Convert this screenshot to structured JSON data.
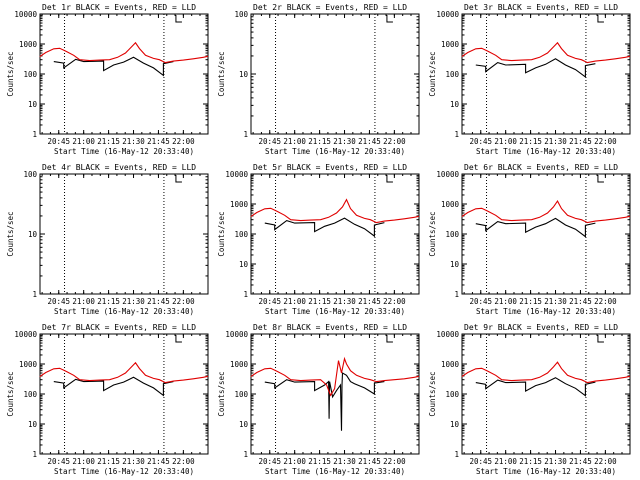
{
  "chart_data": [
    {
      "type": "line",
      "title": "Det 1r BLACK = Events, RED = LLD",
      "xlabel": "Start Time (16-May-12 20:33:40)",
      "ylabel": "Counts/sec",
      "yscale": "log",
      "ylim": [
        1,
        10000
      ],
      "xlim": [
        20.562,
        22.247
      ],
      "xticks": [
        "20:45",
        "21:00",
        "21:15",
        "21:30",
        "21:45",
        "22:00"
      ],
      "xtick_values": [
        20.75,
        21.0,
        21.25,
        21.5,
        21.75,
        22.0
      ],
      "yticks": [
        "1",
        "10",
        "100",
        "1000",
        "10000"
      ],
      "ytick_values": [
        1,
        10,
        100,
        1000,
        10000
      ],
      "vlines": [
        20.808,
        21.805
      ],
      "legend": "none",
      "series": [
        {
          "color": "#000000",
          "x": [
            20.7,
            20.8,
            20.8,
            20.92,
            21.0,
            21.2,
            21.2,
            21.3,
            21.4,
            21.5,
            21.6,
            21.7,
            21.8,
            21.8,
            21.9
          ],
          "y": [
            260,
            230,
            160,
            310,
            260,
            270,
            130,
            200,
            250,
            360,
            230,
            160,
            90,
            220,
            260
          ]
        },
        {
          "color": "#e00000",
          "x": [
            20.56,
            20.62,
            20.7,
            20.76,
            20.82,
            20.9,
            20.96,
            21.06,
            21.16,
            21.26,
            21.34,
            21.42,
            21.48,
            21.52,
            21.56,
            21.62,
            21.7,
            21.76,
            21.82,
            21.9,
            22.0,
            22.1,
            22.2,
            22.247
          ],
          "y": [
            380,
            520,
            690,
            720,
            580,
            420,
            300,
            280,
            290,
            300,
            360,
            500,
            800,
            1100,
            700,
            420,
            330,
            300,
            240,
            270,
            290,
            320,
            360,
            390
          ]
        }
      ]
    },
    {
      "type": "line",
      "title": "Det 2r BLACK = Events, RED = LLD",
      "xlabel": "Start Time (16-May-12 20:33:40)",
      "ylabel": "Counts/sec",
      "yscale": "log",
      "ylim": [
        1,
        100
      ],
      "xlim": [
        20.562,
        22.247
      ],
      "xticks": [
        "20:45",
        "21:00",
        "21:15",
        "21:30",
        "21:45",
        "22:00"
      ],
      "xtick_values": [
        20.75,
        21.0,
        21.25,
        21.5,
        21.75,
        22.0
      ],
      "yticks": [
        "1",
        "10",
        "100"
      ],
      "ytick_values": [
        1,
        10,
        100
      ],
      "vlines": [
        20.808,
        21.805
      ],
      "legend": "none",
      "series": []
    },
    {
      "type": "line",
      "title": "Det 3r BLACK = Events, RED = LLD",
      "xlabel": "Start Time (16-May-12 20:33:40)",
      "ylabel": "Counts/sec",
      "yscale": "log",
      "ylim": [
        1,
        10000
      ],
      "xlim": [
        20.562,
        22.247
      ],
      "xticks": [
        "20:45",
        "21:00",
        "21:15",
        "21:30",
        "21:45",
        "22:00"
      ],
      "xtick_values": [
        20.75,
        21.0,
        21.25,
        21.5,
        21.75,
        22.0
      ],
      "yticks": [
        "1",
        "10",
        "100",
        "1000",
        "10000"
      ],
      "ytick_values": [
        1,
        10,
        100,
        1000,
        10000
      ],
      "vlines": [
        20.808,
        21.805
      ],
      "legend": "none",
      "series": [
        {
          "color": "#000000",
          "x": [
            20.7,
            20.8,
            20.8,
            20.92,
            21.0,
            21.2,
            21.2,
            21.3,
            21.4,
            21.5,
            21.6,
            21.7,
            21.8,
            21.8,
            21.9
          ],
          "y": [
            200,
            180,
            120,
            240,
            200,
            210,
            110,
            160,
            210,
            320,
            200,
            140,
            80,
            190,
            220
          ]
        },
        {
          "color": "#e00000",
          "x": [
            20.56,
            20.62,
            20.7,
            20.76,
            20.82,
            20.9,
            20.96,
            21.06,
            21.16,
            21.26,
            21.34,
            21.42,
            21.48,
            21.52,
            21.56,
            21.62,
            21.7,
            21.76,
            21.82,
            21.9,
            22.0,
            22.1,
            22.2,
            22.247
          ],
          "y": [
            380,
            520,
            690,
            720,
            580,
            420,
            300,
            280,
            290,
            300,
            360,
            500,
            800,
            1100,
            700,
            420,
            330,
            300,
            240,
            270,
            290,
            320,
            360,
            390
          ]
        }
      ]
    },
    {
      "type": "line",
      "title": "Det 4r BLACK = Events, RED = LLD",
      "xlabel": "Start Time (16-May-12 20:33:40)",
      "ylabel": "Counts/sec",
      "yscale": "log",
      "ylim": [
        1,
        100
      ],
      "xlim": [
        20.562,
        22.247
      ],
      "xticks": [
        "20:45",
        "21:00",
        "21:15",
        "21:30",
        "21:45",
        "22:00"
      ],
      "xtick_values": [
        20.75,
        21.0,
        21.25,
        21.5,
        21.75,
        22.0
      ],
      "yticks": [
        "1",
        "10",
        "100"
      ],
      "ytick_values": [
        1,
        10,
        100
      ],
      "vlines": [
        20.808,
        21.805
      ],
      "legend": "none",
      "series": []
    },
    {
      "type": "line",
      "title": "Det 5r BLACK = Events, RED = LLD",
      "xlabel": "Start Time (16-May-12 20:33:40)",
      "ylabel": "Counts/sec",
      "yscale": "log",
      "ylim": [
        1,
        10000
      ],
      "xlim": [
        20.562,
        22.247
      ],
      "xticks": [
        "20:45",
        "21:00",
        "21:15",
        "21:30",
        "21:45",
        "22:00"
      ],
      "xtick_values": [
        20.75,
        21.0,
        21.25,
        21.5,
        21.75,
        22.0
      ],
      "yticks": [
        "1",
        "10",
        "100",
        "1000",
        "10000"
      ],
      "ytick_values": [
        1,
        10,
        100,
        1000,
        10000
      ],
      "vlines": [
        20.808,
        21.805
      ],
      "legend": "none",
      "series": [
        {
          "color": "#000000",
          "x": [
            20.7,
            20.8,
            20.8,
            20.92,
            21.0,
            21.2,
            21.2,
            21.3,
            21.4,
            21.5,
            21.6,
            21.7,
            21.8,
            21.8,
            21.9
          ],
          "y": [
            230,
            200,
            140,
            280,
            230,
            240,
            120,
            180,
            230,
            340,
            210,
            150,
            85,
            200,
            240
          ]
        },
        {
          "color": "#e00000",
          "x": [
            20.56,
            20.62,
            20.7,
            20.76,
            20.82,
            20.9,
            20.96,
            21.06,
            21.16,
            21.26,
            21.34,
            21.42,
            21.48,
            21.52,
            21.56,
            21.62,
            21.7,
            21.76,
            21.82,
            21.9,
            22.0,
            22.1,
            22.2,
            22.247
          ],
          "y": [
            380,
            520,
            690,
            720,
            580,
            420,
            300,
            280,
            290,
            300,
            360,
            500,
            800,
            1400,
            700,
            420,
            330,
            300,
            240,
            270,
            290,
            320,
            360,
            390
          ]
        }
      ]
    },
    {
      "type": "line",
      "title": "Det 6r BLACK = Events, RED = LLD",
      "xlabel": "Start Time (16-May-12 20:33:40)",
      "ylabel": "Counts/sec",
      "yscale": "log",
      "ylim": [
        1,
        10000
      ],
      "xlim": [
        20.562,
        22.247
      ],
      "xticks": [
        "20:45",
        "21:00",
        "21:15",
        "21:30",
        "21:45",
        "22:00"
      ],
      "xtick_values": [
        20.75,
        21.0,
        21.25,
        21.5,
        21.75,
        22.0
      ],
      "yticks": [
        "1",
        "10",
        "100",
        "1000",
        "10000"
      ],
      "ytick_values": [
        1,
        10,
        100,
        1000,
        10000
      ],
      "vlines": [
        20.808,
        21.805
      ],
      "legend": "none",
      "series": [
        {
          "color": "#000000",
          "x": [
            20.7,
            20.8,
            20.8,
            20.92,
            21.0,
            21.2,
            21.2,
            21.3,
            21.4,
            21.5,
            21.6,
            21.7,
            21.8,
            21.8,
            21.9
          ],
          "y": [
            220,
            190,
            130,
            260,
            220,
            230,
            115,
            170,
            220,
            330,
            200,
            145,
            82,
            195,
            230
          ]
        },
        {
          "color": "#e00000",
          "x": [
            20.56,
            20.62,
            20.7,
            20.76,
            20.82,
            20.9,
            20.96,
            21.06,
            21.16,
            21.26,
            21.34,
            21.42,
            21.48,
            21.52,
            21.56,
            21.62,
            21.7,
            21.76,
            21.82,
            21.9,
            22.0,
            22.1,
            22.2,
            22.247
          ],
          "y": [
            380,
            520,
            690,
            720,
            580,
            420,
            300,
            280,
            290,
            300,
            360,
            500,
            800,
            1250,
            700,
            420,
            330,
            300,
            240,
            270,
            290,
            320,
            360,
            390
          ]
        }
      ]
    },
    {
      "type": "line",
      "title": "Det 7r BLACK = Events, RED = LLD",
      "xlabel": "Start Time (16-May-12 20:33:40)",
      "ylabel": "Counts/sec",
      "yscale": "log",
      "ylim": [
        1,
        10000
      ],
      "xlim": [
        20.562,
        22.247
      ],
      "xticks": [
        "20:45",
        "21:00",
        "21:15",
        "21:30",
        "21:45",
        "22:00"
      ],
      "xtick_values": [
        20.75,
        21.0,
        21.25,
        21.5,
        21.75,
        22.0
      ],
      "yticks": [
        "1",
        "10",
        "100",
        "1000",
        "10000"
      ],
      "ytick_values": [
        1,
        10,
        100,
        1000,
        10000
      ],
      "vlines": [
        20.808,
        21.805
      ],
      "legend": "none",
      "series": [
        {
          "color": "#000000",
          "x": [
            20.7,
            20.8,
            20.8,
            20.92,
            21.0,
            21.2,
            21.2,
            21.3,
            21.4,
            21.5,
            21.6,
            21.7,
            21.8,
            21.8,
            21.9
          ],
          "y": [
            260,
            230,
            160,
            310,
            260,
            270,
            130,
            200,
            250,
            360,
            230,
            160,
            90,
            220,
            260
          ]
        },
        {
          "color": "#e00000",
          "x": [
            20.56,
            20.62,
            20.7,
            20.76,
            20.82,
            20.9,
            20.96,
            21.06,
            21.16,
            21.26,
            21.34,
            21.42,
            21.48,
            21.52,
            21.56,
            21.62,
            21.7,
            21.76,
            21.82,
            21.9,
            22.0,
            22.1,
            22.2,
            22.247
          ],
          "y": [
            380,
            520,
            690,
            720,
            580,
            420,
            300,
            280,
            290,
            300,
            360,
            500,
            800,
            1100,
            700,
            420,
            330,
            300,
            240,
            270,
            290,
            320,
            360,
            390
          ]
        }
      ]
    },
    {
      "type": "line",
      "title": "Det 8r BLACK = Events, RED = LLD",
      "xlabel": "Start Time (16-May-12 20:33:40)",
      "ylabel": "Counts/sec",
      "yscale": "log",
      "ylim": [
        1,
        10000
      ],
      "xlim": [
        20.562,
        22.247
      ],
      "xticks": [
        "20:45",
        "21:00",
        "21:15",
        "21:30",
        "21:45",
        "22:00"
      ],
      "xtick_values": [
        20.75,
        21.0,
        21.25,
        21.5,
        21.75,
        22.0
      ],
      "yticks": [
        "1",
        "10",
        "100",
        "1000",
        "10000"
      ],
      "ytick_values": [
        1,
        10,
        100,
        1000,
        10000
      ],
      "vlines": [
        20.808,
        21.805
      ],
      "legend": "none",
      "series": [
        {
          "color": "#000000",
          "x": [
            20.7,
            20.8,
            20.8,
            20.92,
            21.0,
            21.2,
            21.2,
            21.3,
            21.34,
            21.345,
            21.35,
            21.38,
            21.42,
            21.46,
            21.47,
            21.475,
            21.48,
            21.52,
            21.56,
            21.6,
            21.7,
            21.8,
            21.8,
            21.9
          ],
          "y": [
            250,
            220,
            160,
            300,
            250,
            260,
            130,
            200,
            260,
            15,
            260,
            80,
            130,
            200,
            6,
            200,
            500,
            420,
            260,
            220,
            160,
            100,
            230,
            260
          ]
        },
        {
          "color": "#e00000",
          "x": [
            20.56,
            20.62,
            20.7,
            20.76,
            20.82,
            20.9,
            20.96,
            21.06,
            21.16,
            21.26,
            21.32,
            21.36,
            21.4,
            21.44,
            21.47,
            21.5,
            21.52,
            21.56,
            21.62,
            21.7,
            21.76,
            21.82,
            21.9,
            22.0,
            22.1,
            22.2,
            22.247
          ],
          "y": [
            380,
            520,
            690,
            720,
            580,
            420,
            300,
            280,
            290,
            300,
            200,
            90,
            150,
            1300,
            500,
            1500,
            1000,
            600,
            420,
            330,
            300,
            260,
            280,
            300,
            320,
            360,
            390
          ]
        }
      ]
    },
    {
      "type": "line",
      "title": "Det 9r BLACK = Events, RED = LLD",
      "xlabel": "Start Time (16-May-12 20:33:40)",
      "ylabel": "Counts/sec",
      "yscale": "log",
      "ylim": [
        1,
        10000
      ],
      "xlim": [
        20.562,
        22.247
      ],
      "xticks": [
        "20:45",
        "21:00",
        "21:15",
        "21:30",
        "21:45",
        "22:00"
      ],
      "xtick_values": [
        20.75,
        21.0,
        21.25,
        21.5,
        21.75,
        22.0
      ],
      "yticks": [
        "1",
        "10",
        "100",
        "1000",
        "10000"
      ],
      "ytick_values": [
        1,
        10,
        100,
        1000,
        10000
      ],
      "vlines": [
        20.808,
        21.805
      ],
      "legend": "none",
      "series": [
        {
          "color": "#000000",
          "x": [
            20.7,
            20.8,
            20.8,
            20.92,
            21.0,
            21.2,
            21.2,
            21.3,
            21.4,
            21.5,
            21.6,
            21.7,
            21.8,
            21.8,
            21.9
          ],
          "y": [
            240,
            210,
            150,
            290,
            240,
            250,
            125,
            190,
            240,
            350,
            220,
            155,
            88,
            210,
            250
          ]
        },
        {
          "color": "#e00000",
          "x": [
            20.56,
            20.62,
            20.7,
            20.76,
            20.82,
            20.9,
            20.96,
            21.06,
            21.16,
            21.26,
            21.34,
            21.42,
            21.48,
            21.52,
            21.56,
            21.62,
            21.7,
            21.76,
            21.82,
            21.9,
            22.0,
            22.1,
            22.2,
            22.247
          ],
          "y": [
            380,
            520,
            690,
            720,
            580,
            420,
            300,
            280,
            290,
            300,
            360,
            500,
            800,
            1150,
            700,
            420,
            330,
            300,
            240,
            270,
            290,
            320,
            360,
            390
          ]
        }
      ]
    }
  ]
}
